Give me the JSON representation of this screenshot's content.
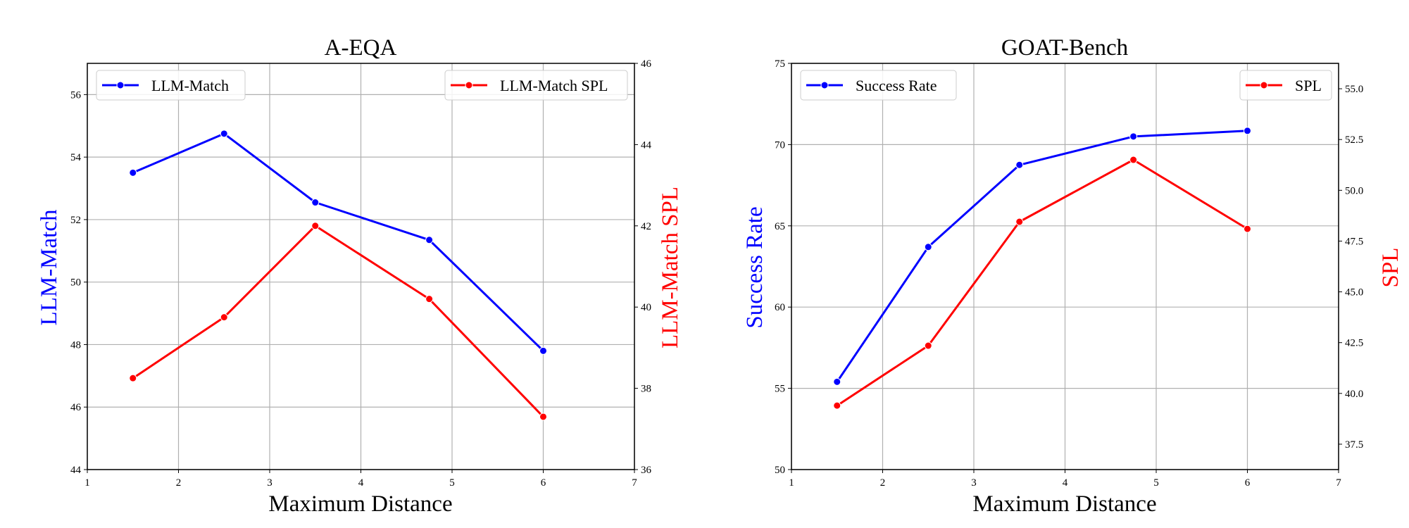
{
  "colors": {
    "blue": "#0000ff",
    "red": "#ff0000",
    "grid": "#b0b0b0",
    "axis": "#000000"
  },
  "chart_data": [
    {
      "type": "line",
      "title": "A-EQA",
      "xlabel": "Maximum Distance",
      "ylabel_left": "LLM-Match",
      "ylabel_right": "LLM-Match SPL",
      "xlim": [
        1,
        7
      ],
      "ylim_left": [
        44,
        57
      ],
      "ylim_right": [
        36,
        46
      ],
      "xticks": [
        1,
        2,
        3,
        4,
        5,
        6,
        7
      ],
      "xtick_labels": [
        "1",
        "2",
        "3",
        "4",
        "5",
        "6",
        "7"
      ],
      "yticks_left": [
        44,
        46,
        48,
        50,
        52,
        54,
        56
      ],
      "ytick_labels_left": [
        "44",
        "46",
        "48",
        "50",
        "52",
        "54",
        "56"
      ],
      "yticks_right": [
        36,
        38,
        40,
        42,
        44,
        46
      ],
      "ytick_labels_right": [
        "36",
        "38",
        "40",
        "42",
        "44",
        "46"
      ],
      "x": [
        1.5,
        2.5,
        3.5,
        4.75,
        6
      ],
      "series": [
        {
          "name": "LLM-Match",
          "axis": "left",
          "color": "#0000ff",
          "values": [
            53.5,
            54.75,
            52.55,
            51.35,
            47.8
          ]
        },
        {
          "name": "LLM-Match SPL",
          "axis": "right",
          "color": "#ff0000",
          "values": [
            38.25,
            39.75,
            42.0,
            40.2,
            37.3
          ]
        }
      ],
      "legend_left": "top-left",
      "legend_right": "top-right",
      "grid": true
    },
    {
      "type": "line",
      "title": "GOAT-Bench",
      "xlabel": "Maximum Distance",
      "ylabel_left": "Success Rate",
      "ylabel_right": "SPL",
      "xlim": [
        1,
        7
      ],
      "ylim_left": [
        50,
        75
      ],
      "ylim_right": [
        36.25,
        56.25
      ],
      "xticks": [
        1,
        2,
        3,
        4,
        5,
        6,
        7
      ],
      "xtick_labels": [
        "1",
        "2",
        "3",
        "4",
        "5",
        "6",
        "7"
      ],
      "yticks_left": [
        50,
        55,
        60,
        65,
        70,
        75
      ],
      "ytick_labels_left": [
        "50",
        "55",
        "60",
        "65",
        "70",
        "75"
      ],
      "yticks_right": [
        37.5,
        40.0,
        42.5,
        45.0,
        47.5,
        50.0,
        52.5,
        55.0
      ],
      "ytick_labels_right": [
        "37.5",
        "40.0",
        "42.5",
        "45.0",
        "47.5",
        "50.0",
        "52.5",
        "55.0"
      ],
      "x": [
        1.5,
        2.5,
        3.5,
        4.75,
        6
      ],
      "series": [
        {
          "name": "Success Rate",
          "axis": "left",
          "color": "#0000ff",
          "values": [
            55.4,
            63.7,
            68.75,
            70.5,
            70.85
          ]
        },
        {
          "name": "SPL",
          "axis": "right",
          "color": "#ff0000",
          "values": [
            39.4,
            42.35,
            48.45,
            51.5,
            48.1
          ]
        }
      ],
      "legend_left": "top-left",
      "legend_right": "top-right",
      "grid": true
    }
  ]
}
